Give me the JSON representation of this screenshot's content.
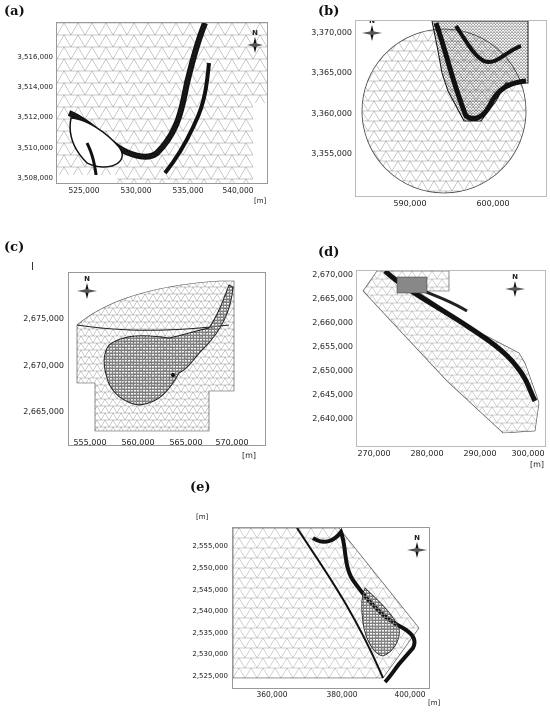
{
  "panels": [
    {
      "id": "a",
      "label": "(a)",
      "y_ticks": [
        "3,516,000",
        "3,514,000",
        "3,512,000",
        "3,510,000",
        "3,508,000"
      ],
      "x_ticks": [
        "525,000",
        "530,000",
        "535,000",
        "540,000"
      ],
      "unit": "[m]",
      "north": "N"
    },
    {
      "id": "b",
      "label": "(b)",
      "y_ticks": [
        "3,370,000",
        "3,365,000",
        "3,360,000",
        "3,355,000"
      ],
      "x_ticks": [
        "590,000",
        "600,000"
      ],
      "unit": "[m]",
      "north": "N"
    },
    {
      "id": "c",
      "label": "(c)",
      "y_ticks": [
        "2,675,000",
        "2,670,000",
        "2,665,000"
      ],
      "x_ticks": [
        "555,000",
        "560,000",
        "565,000",
        "570,000"
      ],
      "unit": "[m]",
      "north": "N"
    },
    {
      "id": "d",
      "label": "(d)",
      "y_ticks": [
        "2,670,000",
        "2,665,000",
        "2,660,000",
        "2,655,000",
        "2,650,000",
        "2,645,000",
        "2,640,000"
      ],
      "x_ticks": [
        "270,000",
        "280,000",
        "290,000",
        "300,000"
      ],
      "unit": "[m]",
      "north": "N"
    },
    {
      "id": "e",
      "label": "(e)",
      "y_ticks": [
        "2,555,000",
        "2,550,000",
        "2,545,000",
        "2,540,000",
        "2,535,000",
        "2,530,000",
        "2,525,000"
      ],
      "x_ticks": [
        "360,000",
        "380,000",
        "400,000"
      ],
      "unit_top": "[m]",
      "unit": "[m]",
      "north": "N"
    }
  ],
  "colors": {
    "mesh": "#444444",
    "dense": "#1a1a1a",
    "frame": "#999999",
    "fill_dark": "#6e6e6e"
  },
  "icons": [
    "north-arrow-icon"
  ]
}
